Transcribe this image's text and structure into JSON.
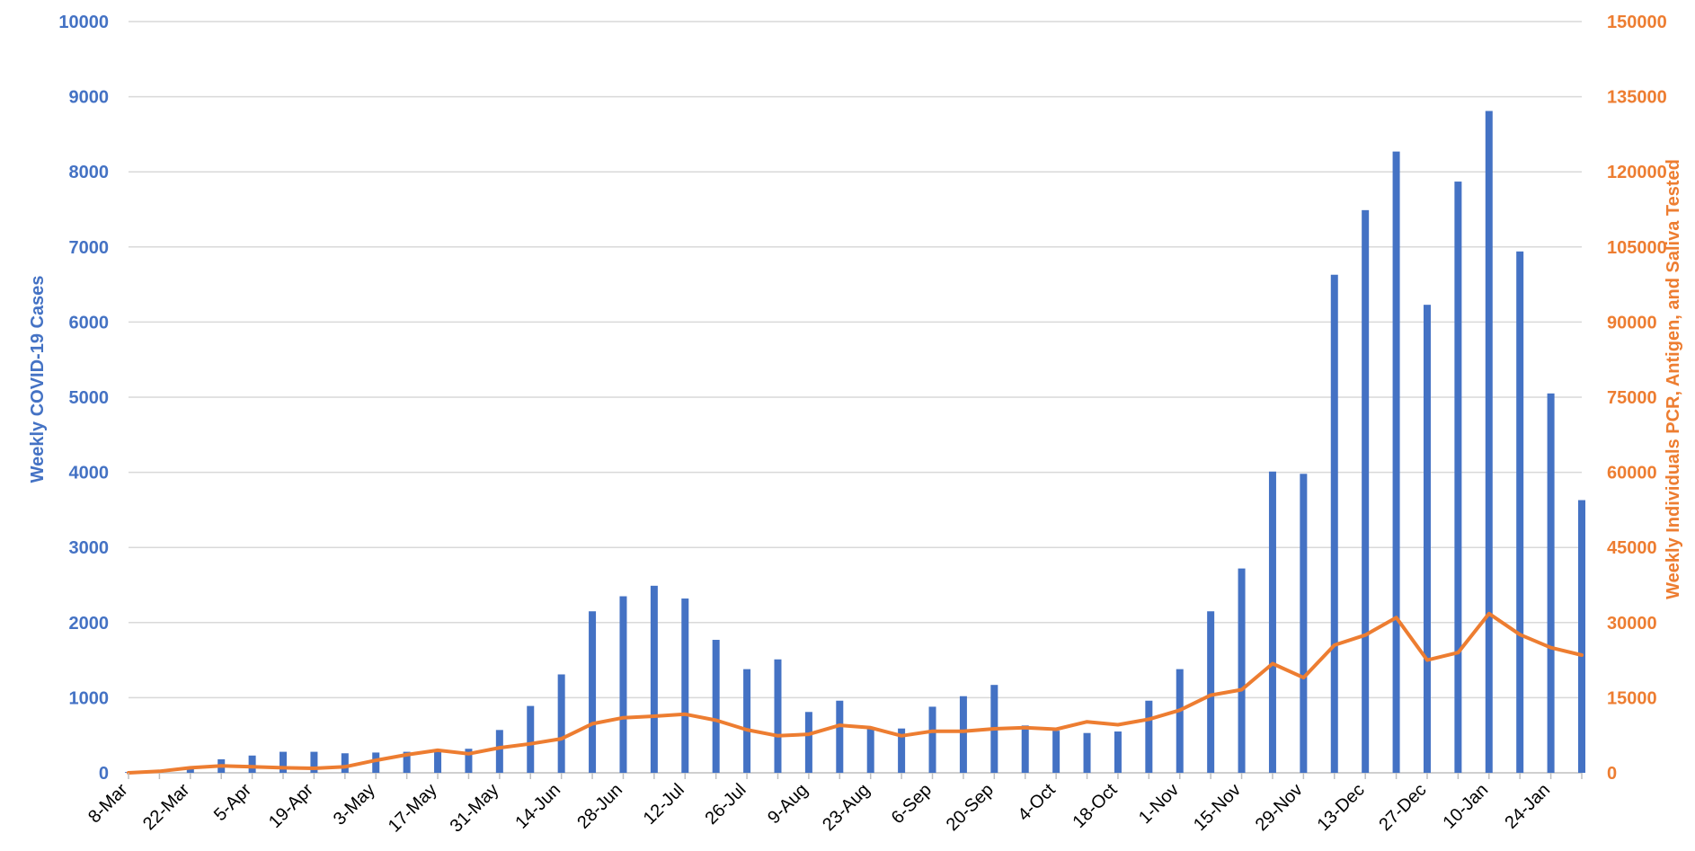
{
  "colors": {
    "left_axis": "#4472C4",
    "right_axis": "#ED7D31",
    "bars": "#4472C4",
    "line": "#ED7D31",
    "grid": "#D9D9D9",
    "tick_text": "#000000"
  },
  "chart_data": {
    "type": "bar",
    "title": "",
    "ylabel": "Weekly COVID-19 Cases",
    "y2label": "Weekly Individuals PCR, Antigen, and Saliva Tested",
    "ylim": [
      0,
      10000
    ],
    "y2lim": [
      0,
      150000
    ],
    "yticks": [
      "0",
      "1000",
      "2000",
      "3000",
      "4000",
      "5000",
      "6000",
      "7000",
      "8000",
      "9000",
      "10000"
    ],
    "y2ticks": [
      "0",
      "15000",
      "30000",
      "45000",
      "60000",
      "75000",
      "90000",
      "105000",
      "120000",
      "135000",
      "150000"
    ],
    "grid": true,
    "categories": [
      "8-Mar",
      "15-Mar",
      "22-Mar",
      "29-Mar",
      "5-Apr",
      "12-Apr",
      "19-Apr",
      "26-Apr",
      "3-May",
      "10-May",
      "17-May",
      "24-May",
      "31-May",
      "7-Jun",
      "14-Jun",
      "21-Jun",
      "28-Jun",
      "5-Jul",
      "12-Jul",
      "19-Jul",
      "26-Jul",
      "2-Aug",
      "9-Aug",
      "16-Aug",
      "23-Aug",
      "30-Aug",
      "6-Sep",
      "13-Sep",
      "20-Sep",
      "27-Sep",
      "4-Oct",
      "11-Oct",
      "18-Oct",
      "25-Oct",
      "1-Nov",
      "8-Nov",
      "15-Nov",
      "22-Nov",
      "29-Nov",
      "6-Dec",
      "13-Dec",
      "20-Dec",
      "27-Dec",
      "3-Jan",
      "10-Jan",
      "17-Jan",
      "24-Jan",
      "31-Jan"
    ],
    "xtick_labels": [
      "8-Mar",
      "22-Mar",
      "5-Apr",
      "19-Apr",
      "3-May",
      "17-May",
      "31-May",
      "14-Jun",
      "28-Jun",
      "12-Jul",
      "26-Jul",
      "9-Aug",
      "23-Aug",
      "6-Sep",
      "20-Sep",
      "4-Oct",
      "18-Oct",
      "1-Nov",
      "15-Nov",
      "29-Nov",
      "13-Dec",
      "27-Dec",
      "10-Jan",
      "24-Jan"
    ],
    "series": [
      {
        "kind": "bar",
        "axis": "left",
        "values": [
          10,
          20,
          80,
          180,
          230,
          280,
          280,
          260,
          270,
          280,
          300,
          320,
          570,
          890,
          1310,
          2150,
          2350,
          2490,
          2320,
          1770,
          1380,
          1510,
          810,
          960,
          590,
          590,
          880,
          1020,
          1170,
          630,
          560,
          530,
          550,
          960,
          1380,
          2150,
          2720,
          4010,
          3980,
          6630,
          7490,
          8270,
          6230,
          7870,
          8810,
          6940,
          5050,
          3630
        ]
      },
      {
        "kind": "line",
        "axis": "right",
        "values": [
          0,
          300,
          1000,
          1400,
          1200,
          1000,
          900,
          1200,
          2500,
          3600,
          4500,
          3800,
          5000,
          5800,
          6800,
          9800,
          11000,
          11300,
          11700,
          10500,
          8600,
          7400,
          7700,
          9500,
          9000,
          7400,
          8300,
          8300,
          8800,
          9000,
          8700,
          10200,
          9600,
          10700,
          12500,
          15500,
          16600,
          21800,
          19000,
          25500,
          27500,
          31000,
          22500,
          24000,
          31800,
          27600,
          25000,
          23500
        ]
      }
    ]
  }
}
